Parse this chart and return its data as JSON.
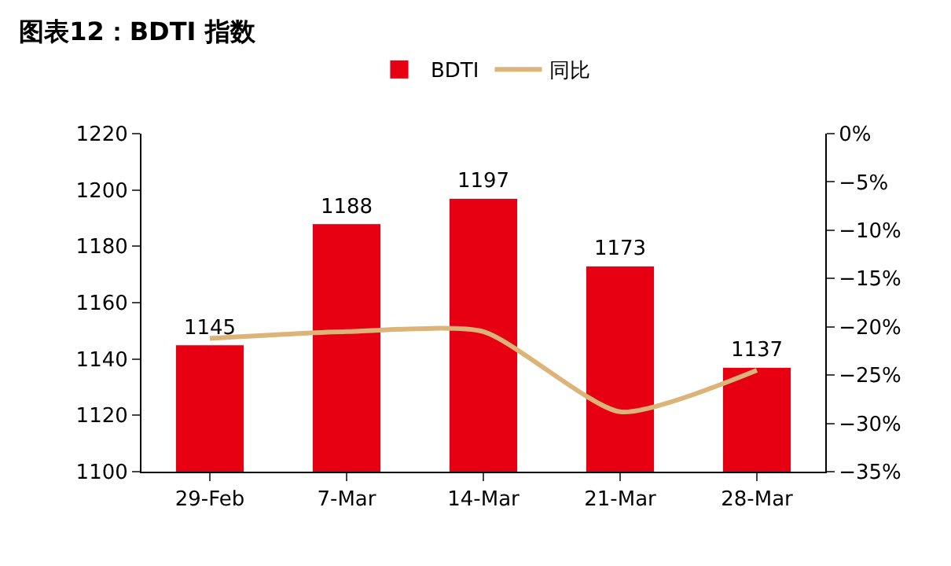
{
  "chart_data": {
    "type": "bar",
    "title": "图表12：BDTI 指数",
    "categories": [
      "29-Feb",
      "7-Mar",
      "14-Mar",
      "21-Mar",
      "28-Mar"
    ],
    "series": [
      {
        "name": "BDTI",
        "color": "#e60012",
        "values": [
          1145,
          1188,
          1197,
          1173,
          1137
        ],
        "value_labels": [
          "1145",
          "1188",
          "1197",
          "1173",
          "1137"
        ]
      },
      {
        "name": "同比",
        "type": "line",
        "axis": "y2",
        "color": "#dcb47a",
        "values": [
          -21.2,
          -20.5,
          -20.5,
          -28.8,
          -24.5
        ]
      }
    ],
    "ylim": [
      1100,
      1220
    ],
    "yticks": [
      1100,
      1120,
      1140,
      1160,
      1180,
      1200,
      1220
    ],
    "y2lim": [
      -35,
      0
    ],
    "y2ticks": [
      {
        "value": 0,
        "label": "0%"
      },
      {
        "value": -5,
        "label": "−5%"
      },
      {
        "value": -10,
        "label": "−10%"
      },
      {
        "value": -15,
        "label": "−15%"
      },
      {
        "value": -20,
        "label": "−20%"
      },
      {
        "value": -25,
        "label": "−25%"
      },
      {
        "value": -30,
        "label": "−30%"
      },
      {
        "value": -35,
        "label": "−35%"
      }
    ],
    "legend": "top",
    "marker": "none",
    "line_style": "solid"
  }
}
